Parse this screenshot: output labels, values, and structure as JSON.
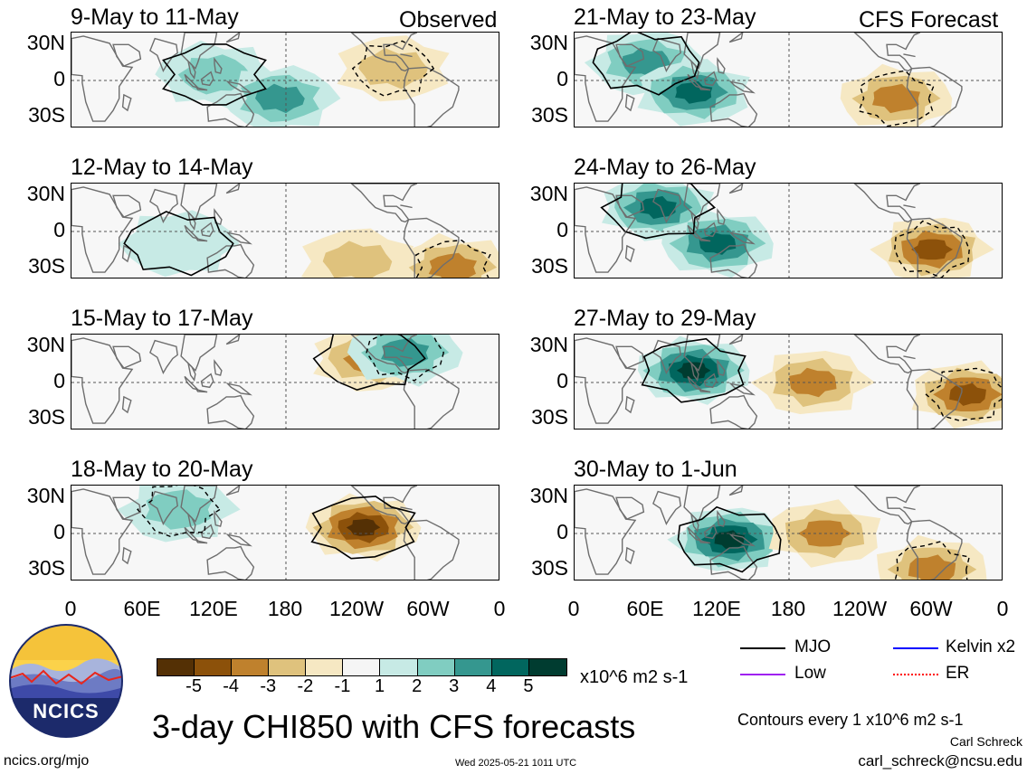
{
  "left_column": {
    "tag": "Observed",
    "panels": [
      {
        "title": "9-May to 11-May"
      },
      {
        "title": "12-May to 14-May"
      },
      {
        "title": "15-May to 17-May"
      },
      {
        "title": "18-May to 20-May"
      }
    ]
  },
  "right_column": {
    "tag": "CFS Forecast",
    "panels": [
      {
        "title": "21-May to 23-May"
      },
      {
        "title": "24-May to 26-May"
      },
      {
        "title": "27-May to 29-May"
      },
      {
        "title": "30-May to 1-Jun"
      }
    ]
  },
  "lat_labels": [
    "30N",
    "0",
    "30S"
  ],
  "lon_labels": [
    "0",
    "60E",
    "120E",
    "180",
    "120W",
    "60W",
    "0"
  ],
  "colorbar": {
    "ticks": [
      "-5",
      "-4",
      "-3",
      "-2",
      "-1",
      "1",
      "2",
      "3",
      "4",
      "5"
    ],
    "colors": [
      "#543005",
      "#8c510a",
      "#bf812d",
      "#dfc27d",
      "#f6e8c3",
      "#f5f5f5",
      "#c7eae5",
      "#80cdc1",
      "#35978f",
      "#01665e",
      "#003c30"
    ],
    "units": "x10^6 m2 s-1"
  },
  "legend": {
    "items": [
      {
        "label": "MJO",
        "color": "#000000"
      },
      {
        "label": "Kelvin x2",
        "color": "#0000ff"
      },
      {
        "label": "Low",
        "color": "#a020f0"
      },
      {
        "label": "ER",
        "color": "#ff0000"
      }
    ],
    "contours_note": "Contours every 1 x10^6 m2 s-1"
  },
  "logo_text": "NCICS",
  "main_title": "3-day CHI850 with CFS forecasts",
  "footer": {
    "url": "ncics.org/mjo",
    "timestamp": "Wed 2025-05-21 1011 UTC",
    "author": "Carl Schreck",
    "email": "carl_schreck@ncsu.edu"
  },
  "map_data": {
    "variable": "3-day CHI850 anomaly",
    "domain": "tropics 0-360E, 40S-40N",
    "panels": [
      {
        "period": "9-May to 11-May",
        "features": [
          {
            "sign": "+",
            "lon": 120,
            "lat": 5,
            "level": 2
          },
          {
            "sign": "+",
            "lon": 175,
            "lat": -15,
            "level": 3
          },
          {
            "sign": "-",
            "lon": 270,
            "lat": 10,
            "level": -2
          }
        ]
      },
      {
        "period": "12-May to 14-May",
        "features": [
          {
            "sign": "+",
            "lon": 90,
            "lat": -10,
            "level": 1
          },
          {
            "sign": "-",
            "lon": 240,
            "lat": -25,
            "level": -2
          },
          {
            "sign": "-",
            "lon": 320,
            "lat": -30,
            "level": -3
          }
        ]
      },
      {
        "period": "15-May to 17-May",
        "features": [
          {
            "sign": "-",
            "lon": 250,
            "lat": 20,
            "level": -3
          },
          {
            "sign": "+",
            "lon": 280,
            "lat": 25,
            "level": 3
          }
        ]
      },
      {
        "period": "18-May to 20-May",
        "features": [
          {
            "sign": "-",
            "lon": 245,
            "lat": 5,
            "level": -5
          },
          {
            "sign": "+",
            "lon": 90,
            "lat": 20,
            "level": 2
          }
        ]
      },
      {
        "period": "21-May to 23-May",
        "features": [
          {
            "sign": "+",
            "lon": 60,
            "lat": 15,
            "level": 3
          },
          {
            "sign": "+",
            "lon": 100,
            "lat": -10,
            "level": 4
          },
          {
            "sign": "-",
            "lon": 270,
            "lat": -15,
            "level": -3
          }
        ]
      },
      {
        "period": "24-May to 26-May",
        "features": [
          {
            "sign": "+",
            "lon": 70,
            "lat": 20,
            "level": 4
          },
          {
            "sign": "+",
            "lon": 120,
            "lat": -10,
            "level": 4
          },
          {
            "sign": "-",
            "lon": 300,
            "lat": -15,
            "level": -4
          }
        ]
      },
      {
        "period": "27-May to 29-May",
        "features": [
          {
            "sign": "+",
            "lon": 100,
            "lat": 10,
            "level": 5
          },
          {
            "sign": "-",
            "lon": 200,
            "lat": 0,
            "level": -3
          },
          {
            "sign": "-",
            "lon": 330,
            "lat": -10,
            "level": -4
          }
        ]
      },
      {
        "period": "30-May to 1-Jun",
        "features": [
          {
            "sign": "+",
            "lon": 130,
            "lat": -5,
            "level": 5
          },
          {
            "sign": "-",
            "lon": 210,
            "lat": 0,
            "level": -3
          },
          {
            "sign": "-",
            "lon": 300,
            "lat": -30,
            "level": -3
          }
        ]
      }
    ]
  }
}
